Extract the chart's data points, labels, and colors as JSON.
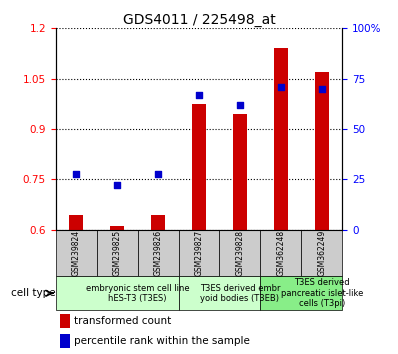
{
  "title": "GDS4011 / 225498_at",
  "samples": [
    "GSM239824",
    "GSM239825",
    "GSM239826",
    "GSM239827",
    "GSM239828",
    "GSM362248",
    "GSM362249"
  ],
  "transformed_count": [
    0.645,
    0.612,
    0.645,
    0.975,
    0.945,
    1.14,
    1.07
  ],
  "percentile_rank_pct": [
    27.5,
    22.0,
    27.5,
    67.0,
    62.0,
    71.0,
    70.0
  ],
  "ylim_left": [
    0.6,
    1.2
  ],
  "ylim_right": [
    0,
    100
  ],
  "yticks_left": [
    0.6,
    0.75,
    0.9,
    1.05,
    1.2
  ],
  "yticks_left_labels": [
    "0.6",
    "0.75",
    "0.9",
    "1.05",
    "1.2"
  ],
  "yticks_right": [
    0,
    25,
    50,
    75,
    100
  ],
  "yticks_right_labels": [
    "0",
    "25",
    "50",
    "75",
    "100%"
  ],
  "bar_color": "#cc0000",
  "dot_color": "#0000cc",
  "bar_width": 0.35,
  "groups": [
    {
      "label": "embryonic stem cell line\nhES-T3 (T3ES)",
      "start": 0,
      "end": 3,
      "color": "#ccffcc"
    },
    {
      "label": "T3ES derived embr\nyoid bodies (T3EB)",
      "start": 3,
      "end": 5,
      "color": "#ccffcc"
    },
    {
      "label": "T3ES derived\npancreatic islet-like\ncells (T3pi)",
      "start": 5,
      "end": 7,
      "color": "#88ee88"
    }
  ],
  "cell_type_label": "cell type",
  "legend_red_label": "transformed count",
  "legend_blue_label": "percentile rank within the sample",
  "title_fontsize": 10,
  "tick_fontsize": 7.5,
  "sample_fontsize": 5.5,
  "group_fontsize": 6.0,
  "legend_fontsize": 7.5
}
